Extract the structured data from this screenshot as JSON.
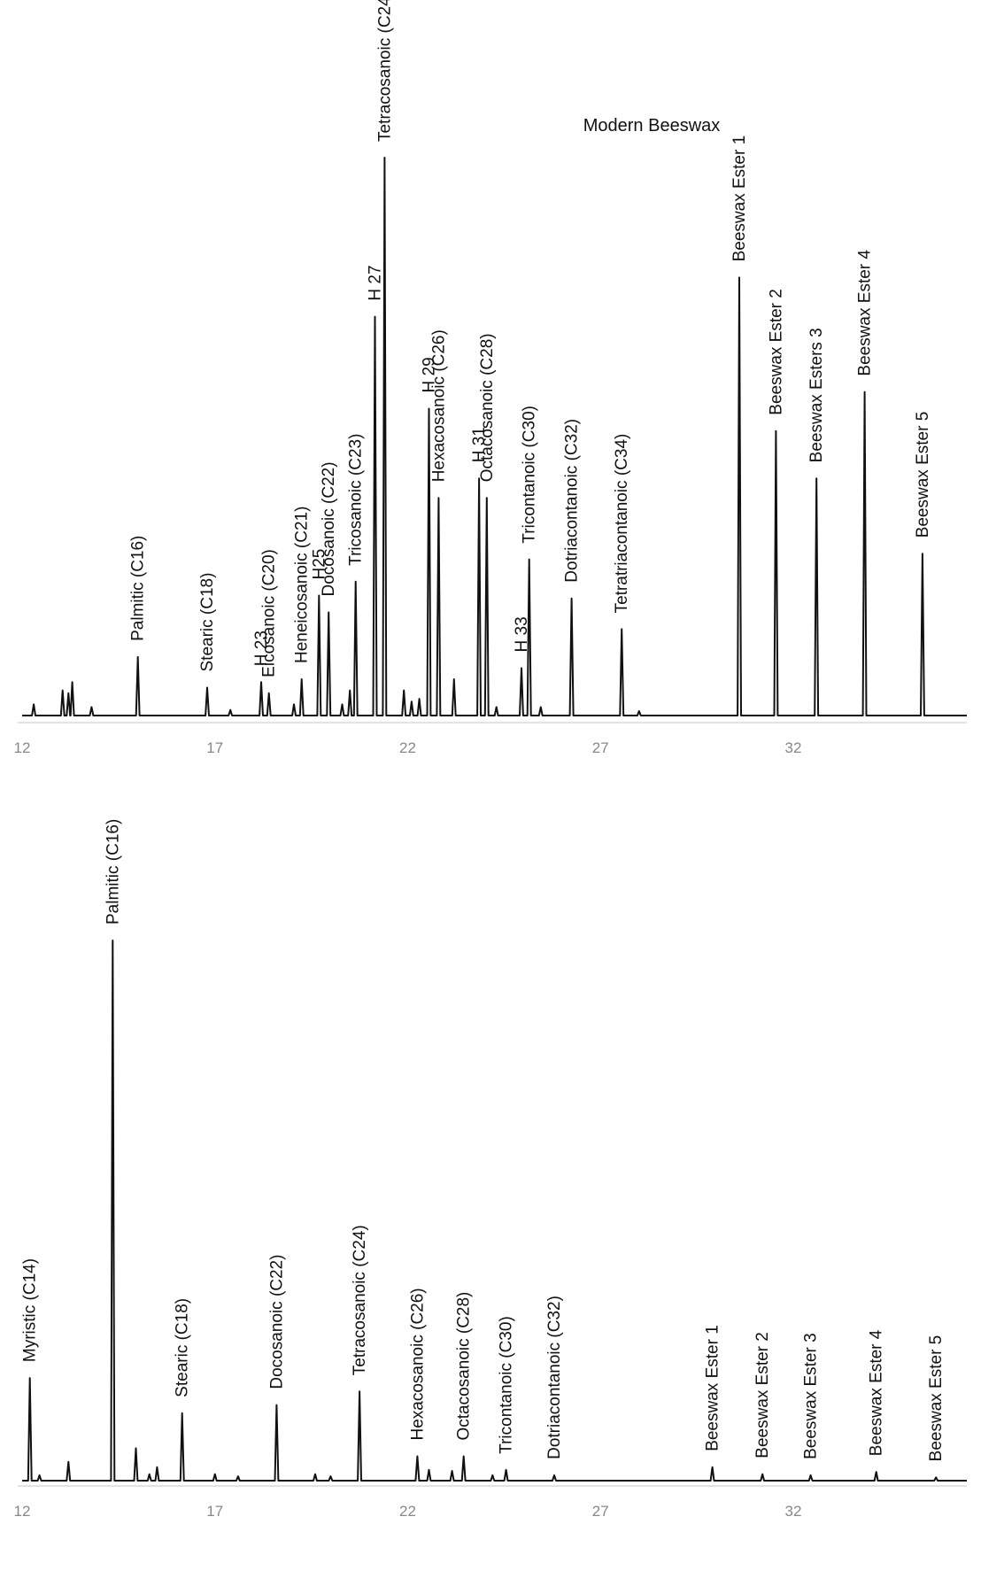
{
  "chart_data": [
    {
      "type": "line",
      "title": "Modern Beeswax",
      "xlabel": "",
      "ylabel": "",
      "xlim": [
        12,
        36.5
      ],
      "ylim": [
        0,
        1
      ],
      "x_ticks": [
        "12",
        "17",
        "22",
        "27",
        "32"
      ],
      "grid": false,
      "peaks": [
        {
          "x": 15.0,
          "h": 0.105,
          "label": "Palmitic (C16)"
        },
        {
          "x": 16.8,
          "h": 0.05,
          "label": "Stearic (C18)"
        },
        {
          "x": 18.2,
          "h": 0.06,
          "label": "H 23"
        },
        {
          "x": 18.4,
          "h": 0.04,
          "label": "Eicosanoic (C20)"
        },
        {
          "x": 19.25,
          "h": 0.065,
          "label": "Heneicosanoic  (C21)"
        },
        {
          "x": 19.7,
          "h": 0.215,
          "label": "H25"
        },
        {
          "x": 19.95,
          "h": 0.185,
          "label": "Docosanoic  (C22)"
        },
        {
          "x": 20.65,
          "h": 0.24,
          "label": "Tricosanoic  (C23)"
        },
        {
          "x": 21.15,
          "h": 0.715,
          "label": "H 27"
        },
        {
          "x": 21.4,
          "h": 1.0,
          "label": "Tetracosanoic (C24)"
        },
        {
          "x": 22.55,
          "h": 0.55,
          "label": "H 29"
        },
        {
          "x": 22.8,
          "h": 0.39,
          "label": "Hexacosanoic (C26)"
        },
        {
          "x": 23.85,
          "h": 0.425,
          "label": "H 31"
        },
        {
          "x": 24.05,
          "h": 0.39,
          "label": "Octacosanoic (C28)"
        },
        {
          "x": 24.95,
          "h": 0.085,
          "label": "H 33"
        },
        {
          "x": 25.15,
          "h": 0.28,
          "label": "Tricontanoic (C30)"
        },
        {
          "x": 26.25,
          "h": 0.21,
          "label": "Dotriacontanoic   (C32)"
        },
        {
          "x": 27.55,
          "h": 0.155,
          "label": "Tetratriacontanoic  (C34)"
        },
        {
          "x": 30.6,
          "h": 0.785,
          "label": "Beeswax Ester  1"
        },
        {
          "x": 31.55,
          "h": 0.51,
          "label": "Beeswax Ester  2"
        },
        {
          "x": 32.6,
          "h": 0.425,
          "label": "Beeswax Esters 3"
        },
        {
          "x": 33.85,
          "h": 0.58,
          "label": "Beeswax Ester 4"
        },
        {
          "x": 35.35,
          "h": 0.29,
          "label": "Beeswax Ester 5"
        }
      ],
      "minor_peaks": [
        {
          "x": 12.3,
          "h": 0.02
        },
        {
          "x": 13.05,
          "h": 0.045
        },
        {
          "x": 13.2,
          "h": 0.04
        },
        {
          "x": 13.3,
          "h": 0.06
        },
        {
          "x": 13.8,
          "h": 0.015
        },
        {
          "x": 17.4,
          "h": 0.01
        },
        {
          "x": 19.05,
          "h": 0.02
        },
        {
          "x": 20.3,
          "h": 0.02
        },
        {
          "x": 20.5,
          "h": 0.045
        },
        {
          "x": 21.9,
          "h": 0.045
        },
        {
          "x": 22.1,
          "h": 0.025
        },
        {
          "x": 22.3,
          "h": 0.03
        },
        {
          "x": 23.2,
          "h": 0.065
        },
        {
          "x": 24.3,
          "h": 0.015
        },
        {
          "x": 25.45,
          "h": 0.015
        },
        {
          "x": 28.0,
          "h": 0.008
        }
      ]
    },
    {
      "type": "line",
      "title": "",
      "xlabel": "",
      "ylabel": "",
      "xlim": [
        12,
        36.5
      ],
      "ylim": [
        0,
        1
      ],
      "x_ticks": [
        "12",
        "17",
        "22",
        "27",
        "32"
      ],
      "grid": false,
      "peaks": [
        {
          "x": 12.2,
          "h": 0.19,
          "label": "Myristic (C14)"
        },
        {
          "x": 14.35,
          "h": 1.0,
          "label": "Palmitic (C16)"
        },
        {
          "x": 16.15,
          "h": 0.125,
          "label": "Stearic (C18)"
        },
        {
          "x": 20.75,
          "h": 0.165,
          "label": "Tetracosanoic (C24)"
        },
        {
          "x": 18.6,
          "h": 0.14,
          "label": "Docosanoic  (C22)"
        },
        {
          "x": 22.25,
          "h": 0.045,
          "label": "Hexacosanoic (C26)"
        },
        {
          "x": 23.45,
          "h": 0.045,
          "label": "Octacosanoic (C28)"
        },
        {
          "x": 24.55,
          "h": 0.02,
          "label": "Tricontanoic (C30)"
        },
        {
          "x": 25.8,
          "h": 0.01,
          "label": "Dotriacontanoic   (C32)"
        },
        {
          "x": 29.9,
          "h": 0.025,
          "label": "Beeswax Ester  1"
        },
        {
          "x": 31.2,
          "h": 0.012,
          "label": "Beeswax Ester  2"
        },
        {
          "x": 32.45,
          "h": 0.01,
          "label": "Beeswax Ester 3"
        },
        {
          "x": 34.15,
          "h": 0.016,
          "label": "Beeswax Ester 4"
        },
        {
          "x": 35.7,
          "h": 0.006,
          "label": "Beeswax Ester 5"
        }
      ],
      "minor_peaks": [
        {
          "x": 12.45,
          "h": 0.01
        },
        {
          "x": 13.2,
          "h": 0.035
        },
        {
          "x": 14.95,
          "h": 0.06
        },
        {
          "x": 15.5,
          "h": 0.025
        },
        {
          "x": 15.3,
          "h": 0.012
        },
        {
          "x": 17.0,
          "h": 0.012
        },
        {
          "x": 17.6,
          "h": 0.008
        },
        {
          "x": 19.6,
          "h": 0.012
        },
        {
          "x": 20.0,
          "h": 0.008
        },
        {
          "x": 22.55,
          "h": 0.02
        },
        {
          "x": 23.15,
          "h": 0.018
        },
        {
          "x": 24.2,
          "h": 0.01
        }
      ]
    }
  ]
}
